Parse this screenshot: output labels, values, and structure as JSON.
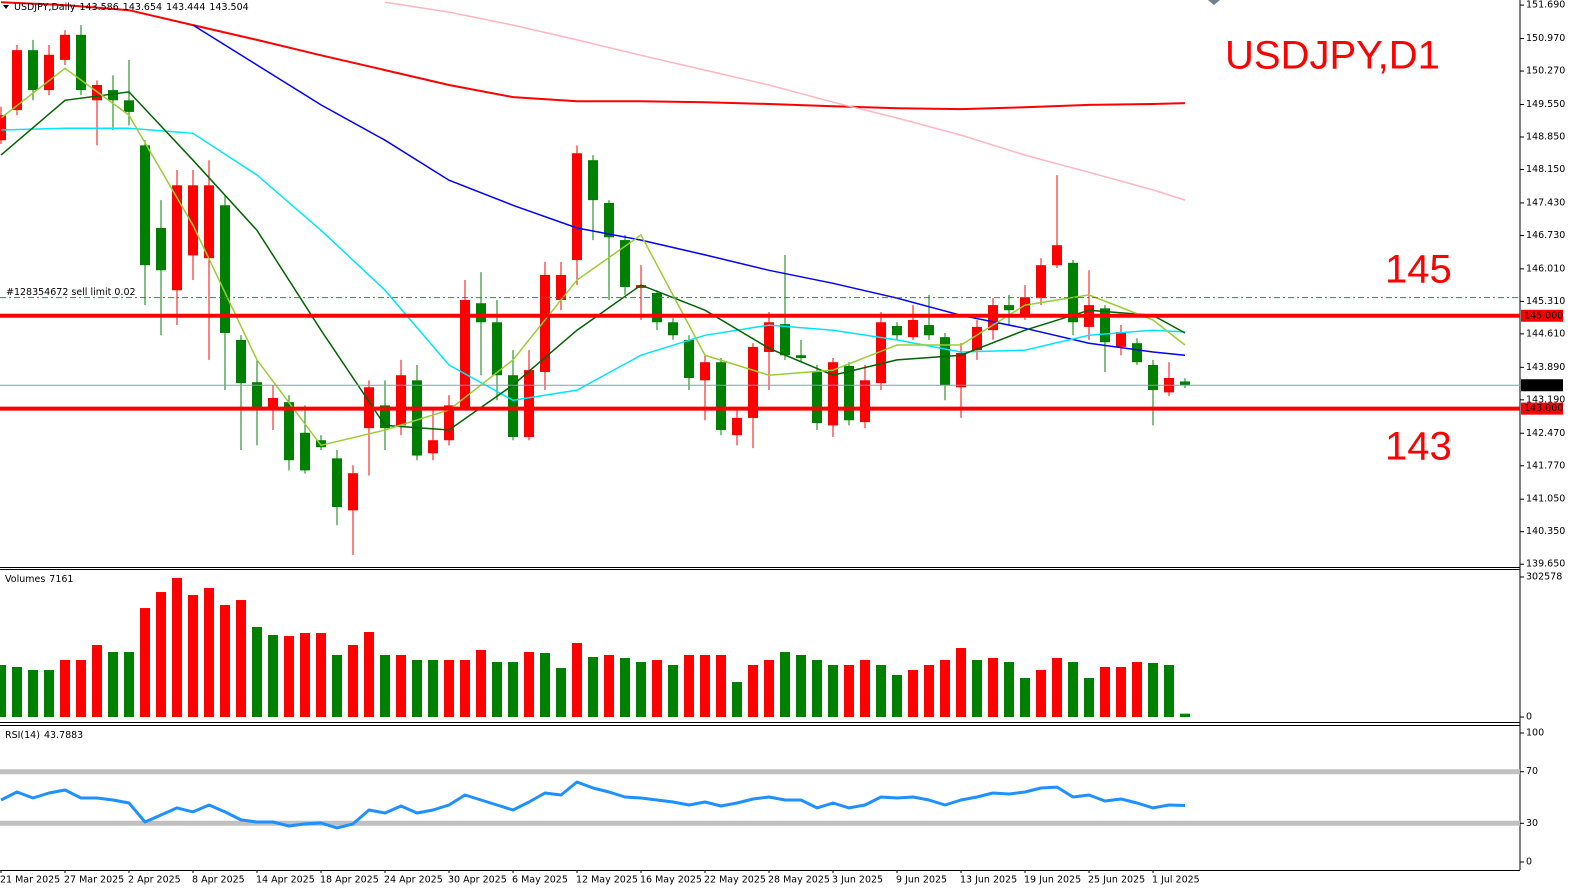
{
  "chart_data": [
    {
      "type": "candlestick",
      "symbol": "USDJPY,Daily",
      "title": "USDJPY,D1",
      "categories": [
        "21 Mar 2025",
        null,
        null,
        null,
        "27 Mar 2025",
        null,
        null,
        null,
        "2 Apr 2025",
        null,
        null,
        null,
        "8 Apr 2025",
        null,
        null,
        null,
        "14 Apr 2025",
        null,
        null,
        null,
        "18 Apr 2025",
        null,
        null,
        null,
        "24 Apr 2025",
        null,
        null,
        null,
        "30 Apr 2025",
        null,
        null,
        null,
        "6 May 2025",
        null,
        null,
        null,
        "12 May 2025",
        null,
        null,
        null,
        "16 May 2025",
        null,
        null,
        null,
        "22 May 2025",
        null,
        null,
        null,
        "28 May 2025",
        null,
        null,
        null,
        "3 Jun 2025",
        null,
        null,
        null,
        "9 Jun 2025",
        null,
        null,
        null,
        "13 Jun 2025",
        null,
        null,
        null,
        "19 Jun 2025",
        null,
        null,
        null,
        "25 Jun 2025",
        null,
        null,
        null,
        "1 Jul 2025",
        null,
        null
      ],
      "open": [
        148.78,
        149.43,
        150.72,
        149.86,
        150.51,
        151.05,
        149.64,
        149.86,
        149.64,
        148.67,
        146.89,
        145.55,
        146.3,
        146.24,
        147.38,
        144.48,
        143.57,
        143.01,
        143.14,
        142.48,
        142.32,
        141.93,
        140.81,
        142.58,
        143.07,
        142.64,
        143.61,
        142.04,
        142.32,
        143.01,
        145.27,
        144.86,
        143.72,
        142.39,
        143.79,
        145.34,
        146.2,
        148.35,
        147.43,
        146.63,
        145.6,
        145.49,
        144.86,
        144.48,
        143.61,
        144.0,
        142.43,
        142.8,
        144.22,
        144.82,
        144.15,
        143.79,
        142.64,
        143.92,
        142.71,
        143.55,
        144.78,
        144.54,
        144.8,
        144.54,
        143.46,
        144.26,
        144.69,
        145.23,
        145.01,
        145.38,
        146.09,
        146.14,
        144.76,
        145.16,
        144.33,
        144.41,
        143.94,
        143.35,
        143.586
      ],
      "high": [
        149.5,
        150.83,
        150.94,
        150.83,
        151.15,
        151.26,
        150.07,
        150.18,
        150.51,
        148.78,
        147.49,
        148.14,
        148.14,
        148.35,
        147.6,
        144.58,
        144.05,
        143.51,
        143.29,
        143.07,
        142.43,
        142.11,
        141.78,
        143.61,
        143.61,
        144.05,
        143.94,
        142.97,
        143.29,
        145.77,
        145.94,
        145.34,
        144.26,
        144.26,
        146.16,
        146.16,
        148.67,
        148.46,
        147.49,
        146.74,
        146.09,
        145.55,
        144.95,
        144.58,
        144.15,
        144.09,
        142.97,
        144.41,
        145.08,
        146.31,
        144.48,
        143.94,
        144.09,
        144.0,
        143.94,
        145.08,
        144.86,
        145.23,
        145.45,
        144.63,
        144.41,
        144.91,
        145.38,
        145.45,
        145.66,
        146.24,
        148.03,
        146.2,
        145.98,
        145.23,
        144.8,
        144.52,
        144.05,
        144.0,
        143.654
      ],
      "low": [
        148.7,
        149.32,
        149.64,
        149.75,
        150.4,
        149.75,
        148.67,
        149.0,
        149.1,
        145.23,
        144.58,
        144.8,
        145.77,
        144.05,
        143.4,
        142.11,
        142.21,
        142.54,
        141.67,
        141.6,
        142.11,
        140.49,
        139.85,
        141.56,
        142.11,
        142.43,
        141.89,
        141.89,
        142.21,
        142.97,
        143.72,
        143.18,
        142.32,
        142.32,
        143.4,
        145.12,
        145.66,
        146.63,
        145.34,
        145.45,
        144.91,
        144.69,
        144.48,
        143.4,
        142.75,
        142.43,
        142.21,
        142.15,
        143.4,
        144.05,
        144.0,
        142.54,
        142.39,
        142.64,
        142.58,
        143.4,
        144.48,
        144.48,
        144.48,
        143.18,
        142.8,
        144.05,
        144.48,
        144.8,
        144.91,
        145.23,
        146.03,
        144.58,
        144.48,
        143.79,
        144.15,
        143.94,
        142.64,
        143.27,
        143.444
      ],
      "close": [
        149.32,
        150.72,
        149.86,
        150.62,
        151.05,
        149.86,
        149.97,
        149.64,
        149.39,
        146.09,
        145.98,
        147.81,
        147.81,
        147.81,
        144.63,
        143.55,
        143.01,
        143.23,
        141.89,
        141.67,
        142.17,
        140.88,
        141.61,
        143.46,
        142.58,
        143.72,
        141.99,
        142.32,
        143.07,
        145.34,
        144.86,
        143.72,
        142.39,
        143.83,
        145.88,
        145.88,
        148.5,
        147.49,
        146.69,
        145.62,
        145.66,
        144.86,
        144.58,
        143.66,
        144.0,
        142.54,
        142.8,
        144.33,
        144.86,
        144.15,
        144.09,
        142.69,
        144.0,
        142.75,
        143.61,
        144.86,
        144.58,
        144.91,
        144.58,
        143.51,
        144.2,
        144.76,
        145.23,
        145.12,
        145.4,
        146.09,
        146.52,
        144.86,
        145.23,
        144.43,
        144.65,
        144.0,
        143.4,
        143.66,
        143.504
      ],
      "up_color": "#ff0000",
      "down_color": "#008000",
      "ylim": [
        139.59,
        151.8
      ],
      "yticks": [
        {
          "value": 151.69,
          "label": "151.690"
        },
        {
          "value": 150.97,
          "label": "150.970"
        },
        {
          "value": 150.27,
          "label": "150.270"
        },
        {
          "value": 149.55,
          "label": "149.550"
        },
        {
          "value": 148.85,
          "label": "148.850"
        },
        {
          "value": 148.15,
          "label": "148.150"
        },
        {
          "value": 147.43,
          "label": "147.430"
        },
        {
          "value": 146.73,
          "label": "146.730"
        },
        {
          "value": 146.01,
          "label": "146.010"
        },
        {
          "value": 145.31,
          "label": "145.310"
        },
        {
          "value": 144.61,
          "label": "144.610"
        },
        {
          "value": 143.89,
          "label": "143.890"
        },
        {
          "value": 143.19,
          "label": "143.190"
        },
        {
          "value": 142.47,
          "label": "142.470"
        },
        {
          "value": 141.77,
          "label": "141.770"
        },
        {
          "value": 141.05,
          "label": "141.050"
        },
        {
          "value": 140.35,
          "label": "140.350"
        },
        {
          "value": 139.65,
          "label": "139.650"
        }
      ],
      "lines": [
        {
          "color": "#ff0000",
          "x": [
            0,
            4,
            8,
            12,
            16,
            20,
            24,
            28,
            32,
            36,
            40,
            44,
            48,
            52,
            56,
            60,
            64,
            68,
            72,
            74
          ],
          "values": [
            151.75,
            151.69,
            151.58,
            151.26,
            150.94,
            150.61,
            150.29,
            149.97,
            149.71,
            149.62,
            149.62,
            149.6,
            149.56,
            149.51,
            149.47,
            149.45,
            149.49,
            149.54,
            149.56,
            149.58
          ]
        },
        {
          "color": "#ffb6c1",
          "x": [
            0,
            4,
            8,
            12,
            16,
            20,
            24,
            28,
            32,
            36,
            40,
            44,
            48,
            52,
            56,
            60,
            64,
            68,
            72,
            74
          ],
          "values": [
            null,
            null,
            null,
            null,
            null,
            null,
            151.75,
            151.54,
            151.26,
            150.94,
            150.61,
            150.29,
            149.97,
            149.6,
            149.26,
            148.89,
            148.46,
            148.09,
            147.71,
            147.49
          ]
        },
        {
          "color": "#0000ff",
          "x": [
            0,
            4,
            8,
            12,
            16,
            20,
            24,
            28,
            32,
            36,
            40,
            44,
            48,
            52,
            56,
            60,
            64,
            68,
            72,
            74
          ],
          "values": [
            null,
            null,
            null,
            151.26,
            150.4,
            149.54,
            148.78,
            147.92,
            147.38,
            146.89,
            146.63,
            146.31,
            145.98,
            145.7,
            145.38,
            145.01,
            144.73,
            144.41,
            144.22,
            144.15
          ]
        },
        {
          "color": "#00e5ff",
          "x": [
            0,
            4,
            8,
            12,
            16,
            20,
            24,
            28,
            32,
            36,
            40,
            44,
            48,
            52,
            56,
            60,
            64,
            68,
            72,
            74
          ],
          "values": [
            149.0,
            149.04,
            149.04,
            148.93,
            148.03,
            146.84,
            145.55,
            143.94,
            143.18,
            143.4,
            144.15,
            144.58,
            144.8,
            144.69,
            144.48,
            144.22,
            144.26,
            144.58,
            144.69,
            144.65
          ]
        },
        {
          "color": "#006400",
          "x": [
            0,
            4,
            8,
            12,
            16,
            20,
            24,
            28,
            32,
            36,
            40,
            44,
            48,
            52,
            56,
            60,
            64,
            68,
            72,
            74
          ],
          "values": [
            148.46,
            149.64,
            149.82,
            148.35,
            146.84,
            144.69,
            142.64,
            142.54,
            143.51,
            144.69,
            145.66,
            145.12,
            144.3,
            143.72,
            144.05,
            144.15,
            144.69,
            145.12,
            145.01,
            144.63
          ]
        },
        {
          "color": "#9acd32",
          "x": [
            0,
            4,
            8,
            12,
            16,
            20,
            24,
            28,
            32,
            36,
            40,
            44,
            48,
            52,
            56,
            60,
            64,
            68,
            72,
            74
          ],
          "values": [
            149.26,
            150.33,
            149.32,
            146.95,
            144.05,
            142.21,
            142.54,
            142.97,
            144.05,
            145.77,
            146.74,
            144.15,
            143.72,
            143.83,
            144.37,
            144.37,
            145.23,
            145.45,
            144.91,
            144.37
          ]
        }
      ],
      "levels": [
        {
          "value": 145,
          "label": "145.000",
          "color": "#ff0000"
        },
        {
          "value": 143,
          "label": "143.000",
          "color": "#ff0000"
        }
      ],
      "bid": 143.504,
      "order": {
        "value": 145.39,
        "label": "#128354672 sell limit 0.02",
        "color": "#2e8b57"
      },
      "annotations": [
        "145",
        "143"
      ]
    },
    {
      "type": "bar",
      "title": "Volumes",
      "values": [
        112400,
        108100,
        101600,
        101600,
        123200,
        123200,
        155600,
        140500,
        140500,
        235500,
        270100,
        300400,
        263600,
        278800,
        242000,
        252800,
        194500,
        177200,
        175000,
        181500,
        181500,
        134000,
        155600,
        183700,
        134000,
        134000,
        123200,
        123200,
        123200,
        123200,
        144800,
        118900,
        118900,
        140500,
        138300,
        105900,
        159900,
        129700,
        134000,
        127500,
        118900,
        123200,
        112400,
        134000,
        134000,
        134000,
        75600,
        112400,
        123200,
        140500,
        134000,
        123200,
        112400,
        112400,
        123200,
        112400,
        90800,
        101600,
        112400,
        123200,
        149100,
        123200,
        127500,
        118900,
        84300,
        101600,
        127500,
        118900,
        84300,
        108100,
        108100,
        118900,
        116700,
        112400,
        7161
      ],
      "colors": [
        "#008000",
        "#008000",
        "#008000",
        "#008000",
        "#ff0000",
        "#ff0000",
        "#ff0000",
        "#008000",
        "#008000",
        "#ff0000",
        "#ff0000",
        "#ff0000",
        "#ff0000",
        "#ff0000",
        "#ff0000",
        "#ff0000",
        "#008000",
        "#008000",
        "#ff0000",
        "#ff0000",
        "#ff0000",
        "#008000",
        "#ff0000",
        "#ff0000",
        "#008000",
        "#ff0000",
        "#008000",
        "#008000",
        "#ff0000",
        "#ff0000",
        "#ff0000",
        "#008000",
        "#008000",
        "#ff0000",
        "#008000",
        "#008000",
        "#ff0000",
        "#008000",
        "#ff0000",
        "#008000",
        "#008000",
        "#ff0000",
        "#008000",
        "#ff0000",
        "#ff0000",
        "#ff0000",
        "#008000",
        "#ff0000",
        "#ff0000",
        "#008000",
        "#008000",
        "#008000",
        "#008000",
        "#ff0000",
        "#ff0000",
        "#008000",
        "#008000",
        "#ff0000",
        "#ff0000",
        "#ff0000",
        "#ff0000",
        "#008000",
        "#ff0000",
        "#008000",
        "#008000",
        "#ff0000",
        "#ff0000",
        "#008000",
        "#008000",
        "#ff0000",
        "#ff0000",
        "#ff0000",
        "#008000",
        "#008000",
        "#008000"
      ],
      "ylim": [
        0,
        302578
      ],
      "yticks": [
        302578,
        0
      ]
    },
    {
      "type": "line",
      "title": "RSI(14)",
      "color": "#1e90ff",
      "values": [
        48.1,
        54.3,
        49.6,
        53.5,
        55.8,
        49.6,
        49.6,
        48.1,
        45.7,
        31.0,
        36.4,
        41.9,
        38.8,
        44.2,
        38.8,
        32.6,
        31.0,
        31.0,
        27.9,
        29.5,
        30.2,
        26.4,
        29.5,
        40.3,
        38.0,
        43.4,
        38.0,
        40.3,
        44.2,
        51.9,
        48.1,
        44.2,
        40.3,
        46.5,
        53.5,
        51.9,
        62.0,
        57.4,
        54.3,
        50.4,
        49.6,
        48.1,
        46.5,
        44.2,
        46.5,
        43.4,
        45.7,
        48.8,
        50.4,
        48.1,
        48.1,
        41.9,
        45.7,
        41.9,
        44.2,
        50.4,
        49.6,
        50.4,
        48.1,
        44.2,
        48.1,
        50.4,
        53.5,
        52.7,
        54.3,
        57.4,
        58.1,
        50.4,
        51.9,
        47.3,
        48.8,
        45.7,
        41.9,
        44.2,
        43.7883
      ],
      "ylim": [
        0,
        100
      ],
      "yticks": [
        100,
        70,
        30,
        0
      ],
      "levels": [
        70,
        30
      ],
      "level_color": "#c0c0c0"
    }
  ]
}
